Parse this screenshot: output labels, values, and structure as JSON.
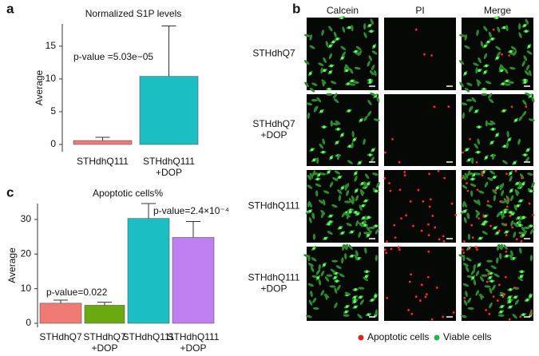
{
  "chart_data": [
    {
      "type": "bar",
      "title": "Normalized S1P levels",
      "ylabel": "Average",
      "categories": [
        "STHdhQ111",
        "STHdhQ111\n+DOP"
      ],
      "values": [
        0.6,
        10.4
      ],
      "errors": [
        0.5,
        7.7
      ],
      "colors": [
        "#f07a74",
        "#1bbfc3"
      ],
      "ylim": [
        -1.1,
        18.4
      ],
      "yticks": [
        0,
        5,
        10,
        15
      ],
      "annotations": [
        "p-value =5.03e−05"
      ]
    },
    {
      "type": "bar",
      "title": "Apoptotic cells%",
      "ylabel": "Average",
      "categories": [
        "STHdhQ7",
        "STHdhQ7\n+DOP",
        "STHdhQ111",
        "STHdhQ111\n+DOP"
      ],
      "values": [
        5.8,
        5.2,
        30.3,
        24.8
      ],
      "errors": [
        0.9,
        0.9,
        4.3,
        4.6
      ],
      "colors": [
        "#f07a74",
        "#6aaa10",
        "#1bbfc3",
        "#c07ff0"
      ],
      "ylim": [
        -1.15,
        34.6
      ],
      "yticks": [
        0,
        10,
        20,
        30
      ],
      "annotations": [
        "p-value=0.022",
        "p-value=2.4×10⁻⁴"
      ]
    }
  ],
  "panel_labels": [
    "a",
    "b",
    "c"
  ],
  "image_grid": {
    "columns": [
      "Calcein",
      "PI",
      "Merge"
    ],
    "rows": [
      "STHdhQ7",
      "STHdhQ7\n+DOP",
      "STHdhQ111",
      "STHdhQ111\n+DOP"
    ],
    "legend": [
      "Apoptotic cells",
      "Viable cells"
    ]
  }
}
